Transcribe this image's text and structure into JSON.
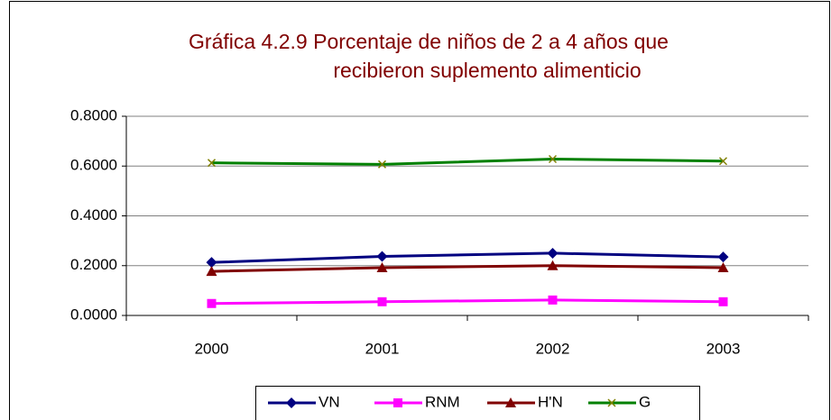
{
  "chart_data": {
    "type": "line",
    "title": [
      "Gráfica 4.2.9 Porcentaje de niños de 2 a 4 años que",
      "recibieron suplemento alimenticio"
    ],
    "categories": [
      "2000",
      "2001",
      "2002",
      "2003"
    ],
    "series": [
      {
        "name": "VN",
        "color": "#000080",
        "marker": "diamond",
        "values": [
          0.213,
          0.237,
          0.25,
          0.235
        ]
      },
      {
        "name": "RNM",
        "color": "#ff00ff",
        "marker": "square",
        "values": [
          0.048,
          0.055,
          0.062,
          0.055
        ]
      },
      {
        "name": "H'N",
        "color": "#800000",
        "marker": "triangle",
        "values": [
          0.177,
          0.192,
          0.2,
          0.192
        ]
      },
      {
        "name": "G",
        "color": "#008000",
        "marker": "x",
        "marker_color": "#808000",
        "values": [
          0.613,
          0.607,
          0.628,
          0.62
        ]
      }
    ],
    "ylim": [
      0,
      0.8
    ],
    "yticks": [
      {
        "value": 0,
        "label": "0.0000"
      },
      {
        "value": 0.2,
        "label": "0.2000"
      },
      {
        "value": 0.4,
        "label": "0.4000"
      },
      {
        "value": 0.6,
        "label": "0.6000"
      },
      {
        "value": 0.8,
        "label": "0.8000"
      }
    ],
    "grid": true,
    "legend": "bottom"
  }
}
